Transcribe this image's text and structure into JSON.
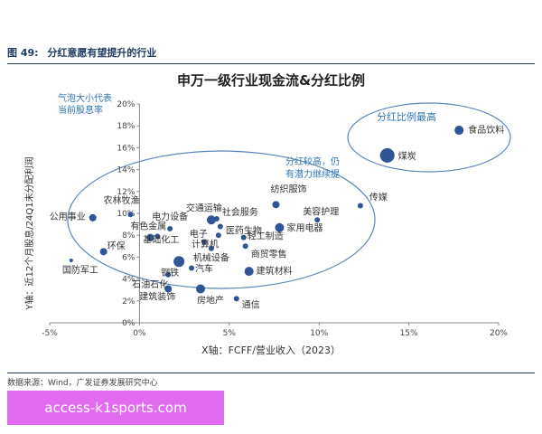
{
  "figure": {
    "number": "图 49:",
    "caption": "分红意愿有望提升的行业"
  },
  "source_note": "数据来源：Wind，广发证券发展研究中心",
  "watermark_text": "access-k1sports.com",
  "colors": {
    "point": "#2f5597",
    "ellipse": "#5b87b8",
    "annotation": "#2f75b5",
    "axis": "#888888",
    "header": "#1f3b63"
  },
  "chart_data": {
    "type": "scatter",
    "title": "申万一级行业现金流&分红比例",
    "xlabel": "X轴：FCFF/营业收入（2023）",
    "ylabel": "Y轴：近12个月股息/24Q1未分配利润",
    "xlim": [
      -0.05,
      0.2
    ],
    "ylim": [
      0.0,
      0.2
    ],
    "x_ticks": [
      -0.05,
      0.0,
      0.05,
      0.1,
      0.15,
      0.2
    ],
    "x_tick_labels": [
      "-5%",
      "0%",
      "5%",
      "10%",
      "15%",
      "20%"
    ],
    "y_ticks": [
      0.0,
      0.02,
      0.04,
      0.06,
      0.08,
      0.1,
      0.12,
      0.14,
      0.16,
      0.18,
      0.2
    ],
    "y_tick_labels": [
      "0%",
      "2%",
      "4%",
      "6%",
      "8%",
      "10%",
      "12%",
      "14%",
      "16%",
      "18%",
      "20%"
    ],
    "grid": false,
    "size_note": "气泡大小代表当前股息率",
    "annotations": [
      {
        "text": "分红比例最高"
      },
      {
        "text": "分红较高，仍有潜力继续提"
      }
    ],
    "points": [
      {
        "label": "食品饮料",
        "x": 0.178,
        "y": 0.176,
        "size": 5
      },
      {
        "label": "煤炭",
        "x": 0.138,
        "y": 0.153,
        "size": 8
      },
      {
        "label": "传媒",
        "x": 0.123,
        "y": 0.107,
        "size": 3
      },
      {
        "label": "美容护理",
        "x": 0.099,
        "y": 0.094,
        "size": 3
      },
      {
        "label": "纺织服饰",
        "x": 0.076,
        "y": 0.108,
        "size": 4
      },
      {
        "label": "家用电器",
        "x": 0.078,
        "y": 0.087,
        "size": 5
      },
      {
        "label": "社会服务",
        "x": 0.043,
        "y": 0.095,
        "size": 3
      },
      {
        "label": "医药生物",
        "x": 0.045,
        "y": 0.088,
        "size": 3
      },
      {
        "label": "交通运输",
        "x": 0.04,
        "y": 0.094,
        "size": 5
      },
      {
        "label": "轻工制造",
        "x": 0.058,
        "y": 0.078,
        "size": 3
      },
      {
        "label": "商贸零售",
        "x": 0.059,
        "y": 0.07,
        "size": 3
      },
      {
        "label": "电子",
        "x": 0.044,
        "y": 0.08,
        "size": 3
      },
      {
        "label": "电力设备",
        "x": 0.017,
        "y": 0.086,
        "size": 3
      },
      {
        "label": "农林牧渔",
        "x": -0.005,
        "y": 0.099,
        "size": 3
      },
      {
        "label": "公用事业",
        "x": -0.026,
        "y": 0.096,
        "size": 4
      },
      {
        "label": "有色金属",
        "x": 0.006,
        "y": 0.078,
        "size": 4
      },
      {
        "label": "基础化工",
        "x": 0.01,
        "y": 0.079,
        "size": 3
      },
      {
        "label": "计算机",
        "x": 0.036,
        "y": 0.074,
        "size": 3
      },
      {
        "label": "机械设备",
        "x": 0.04,
        "y": 0.068,
        "size": 3
      },
      {
        "label": "环保",
        "x": -0.02,
        "y": 0.065,
        "size": 4
      },
      {
        "label": "国防军工",
        "x": -0.038,
        "y": 0.057,
        "size": 2
      },
      {
        "label": "钢铁",
        "x": 0.022,
        "y": 0.056,
        "size": 6
      },
      {
        "label": "建筑材料",
        "x": 0.061,
        "y": 0.047,
        "size": 5
      },
      {
        "label": "汽车",
        "x": 0.029,
        "y": 0.05,
        "size": 3
      },
      {
        "label": "石油石化",
        "x": 0.016,
        "y": 0.044,
        "size": 3
      },
      {
        "label": "建筑装饰",
        "x": 0.016,
        "y": 0.031,
        "size": 4
      },
      {
        "label": "房地产",
        "x": 0.034,
        "y": 0.031,
        "size": 5
      },
      {
        "label": "通信",
        "x": 0.054,
        "y": 0.022,
        "size": 3
      }
    ]
  }
}
